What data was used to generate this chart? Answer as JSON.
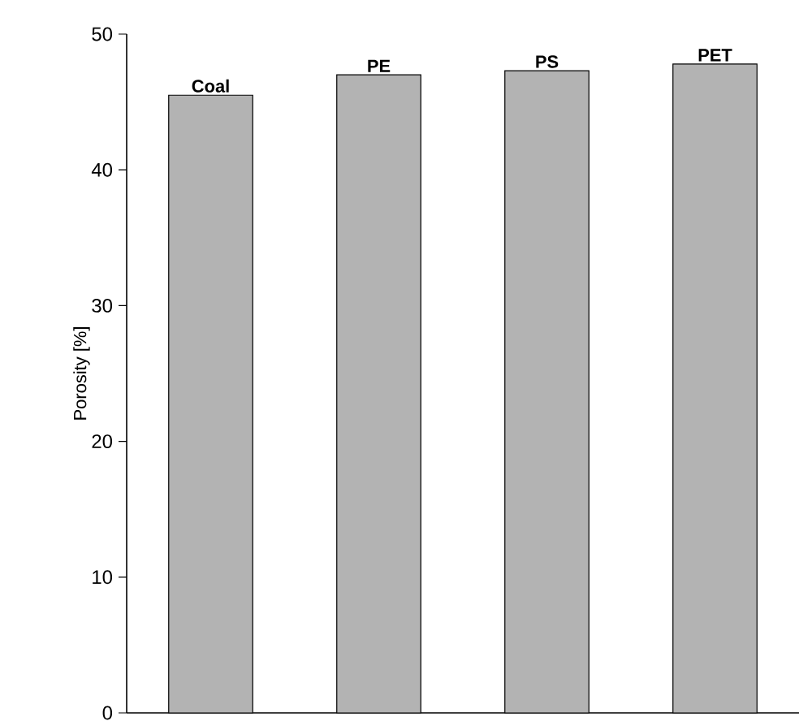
{
  "chart_data": {
    "type": "bar",
    "ylabel": "Porosity [%]",
    "categories": [
      "Coal",
      "PE",
      "PS",
      "PET"
    ],
    "values": [
      45.5,
      47.0,
      47.3,
      47.8
    ],
    "color": "#b3b3b3",
    "ylim": [
      0,
      50
    ],
    "yticks": [
      0,
      10,
      20,
      30,
      40,
      50
    ],
    "tick_labels": "y",
    "grid": false
  }
}
